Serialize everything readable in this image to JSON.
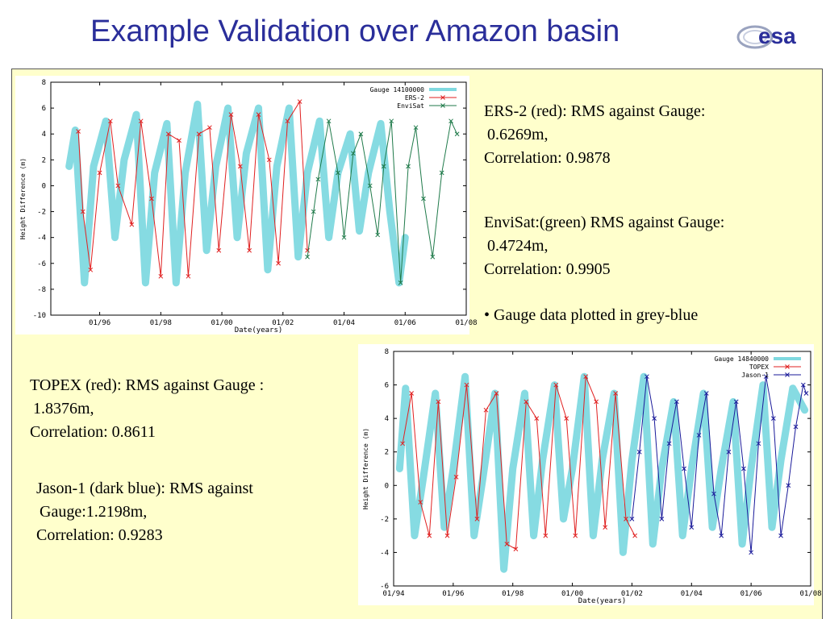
{
  "slide": {
    "title": "Example Validation over Amazon basin",
    "logo_text": "esa",
    "logo_color": "#2a2e9a"
  },
  "colors": {
    "panel_bg": "#ffffcc",
    "gauge": "#7fd9e0",
    "ers2": "#e02020",
    "envisat": "#1f7a4a",
    "topex": "#e02020",
    "jason1": "#1a1a9a"
  },
  "stats_top": {
    "ers2_line1": "ERS-2 (red): RMS against Gauge:",
    "ers2_line2": "0.6269m,",
    "ers2_line3": "Correlation: 0.9878",
    "envisat_line1": "EnviSat:(green) RMS against Gauge:",
    "envisat_line2": "0.4724m,",
    "envisat_line3": "Correlation: 0.9905",
    "gauge_note": "• Gauge data plotted in grey-blue"
  },
  "stats_bottom": {
    "topex_line1": "TOPEX (red): RMS against Gauge :",
    "topex_line2": "1.8376m,",
    "topex_line3": "Correlation: 0.8611",
    "jason_line1": "Jason-1 (dark blue): RMS against",
    "jason_line2": "Gauge:1.2198m,",
    "jason_line3": "Correlation: 0.9283"
  },
  "chart_data": [
    {
      "type": "line",
      "xlabel": "Date(years)",
      "ylabel": "Height Difference (m)",
      "xlim": [
        1994.4,
        2008.0
      ],
      "ylim": [
        -10,
        8
      ],
      "xticks": [
        1996,
        1998,
        2000,
        2002,
        2004,
        2006,
        2008
      ],
      "xtick_labels": [
        "01/96",
        "01/98",
        "01/00",
        "01/02",
        "01/04",
        "01/06",
        "01/08"
      ],
      "yticks": [
        -10,
        -8,
        -6,
        -4,
        -2,
        0,
        2,
        4,
        6,
        8
      ],
      "legend_position": "top-right",
      "series": [
        {
          "name": "Gauge 14100000",
          "color": "#7fd9e0",
          "style": "band",
          "x": [
            1995.0,
            1995.2,
            1995.5,
            1995.8,
            1996.2,
            1996.5,
            1996.8,
            1997.2,
            1997.5,
            1997.8,
            1998.2,
            1998.5,
            1998.8,
            1999.2,
            1999.5,
            1999.8,
            2000.2,
            2000.5,
            2000.8,
            2001.2,
            2001.5,
            2001.8,
            2002.2,
            2002.5,
            2002.8,
            2003.2,
            2003.5,
            2003.8,
            2004.2,
            2004.5,
            2004.8,
            2005.2,
            2005.5,
            2005.8,
            2006.0
          ],
          "y": [
            1.5,
            4.3,
            -7.5,
            1.5,
            5.0,
            -4.0,
            2.0,
            5.5,
            -7.5,
            1.0,
            4.8,
            -7.5,
            1.0,
            6.3,
            -5.0,
            1.5,
            6.0,
            -4.0,
            2.5,
            6.0,
            -6.5,
            1.5,
            6.0,
            -5.5,
            1.0,
            5.0,
            -4.0,
            1.0,
            4.0,
            -3.5,
            1.0,
            4.8,
            -2.0,
            -7.5,
            -4.0
          ]
        },
        {
          "name": "ERS-2",
          "color": "#e02020",
          "x": [
            1995.3,
            1995.45,
            1995.7,
            1996.0,
            1996.35,
            1996.6,
            1997.05,
            1997.35,
            1997.7,
            1998.0,
            1998.25,
            1998.6,
            1998.9,
            1999.25,
            1999.6,
            1999.9,
            2000.3,
            2000.6,
            2000.9,
            2001.2,
            2001.55,
            2001.85,
            2002.15,
            2002.55,
            2002.8
          ],
          "y": [
            4.2,
            -2.0,
            -6.5,
            1.0,
            5.0,
            0.0,
            -3.0,
            5.0,
            -1.0,
            -7.0,
            4.0,
            3.5,
            -7.0,
            4.0,
            4.5,
            -5.0,
            5.5,
            1.5,
            -5.0,
            5.5,
            2.0,
            -6.0,
            5.0,
            6.5,
            -5.0
          ]
        },
        {
          "name": "EnviSat",
          "color": "#1f7a4a",
          "x": [
            2002.8,
            2003.0,
            2003.15,
            2003.5,
            2003.8,
            2004.0,
            2004.3,
            2004.55,
            2004.85,
            2005.1,
            2005.3,
            2005.55,
            2005.85,
            2006.1,
            2006.35,
            2006.6,
            2006.9,
            2007.2,
            2007.5,
            2007.7
          ],
          "y": [
            -5.5,
            -2.0,
            0.5,
            5.0,
            1.0,
            -4.0,
            2.5,
            4.0,
            0.0,
            -3.8,
            1.5,
            5.0,
            -7.5,
            1.5,
            4.5,
            -1.0,
            -5.5,
            1.0,
            5.0,
            4.0
          ]
        }
      ]
    },
    {
      "type": "line",
      "xlabel": "Date(years)",
      "ylabel": "Height Difference (m)",
      "xlim": [
        1994.0,
        2008.0
      ],
      "ylim": [
        -6,
        8
      ],
      "xticks": [
        1994,
        1996,
        1998,
        2000,
        2002,
        2004,
        2006,
        2008
      ],
      "xtick_labels": [
        "01/94",
        "01/96",
        "01/98",
        "01/00",
        "01/02",
        "01/04",
        "01/06",
        "01/08"
      ],
      "yticks": [
        -6,
        -4,
        -2,
        0,
        2,
        4,
        6,
        8
      ],
      "legend_position": "top-right",
      "series": [
        {
          "name": "Gauge 14840000",
          "color": "#7fd9e0",
          "style": "band",
          "x": [
            1994.2,
            1994.4,
            1994.7,
            1995.0,
            1995.4,
            1995.7,
            1996.0,
            1996.4,
            1996.7,
            1997.0,
            1997.4,
            1997.7,
            1998.0,
            1998.4,
            1998.7,
            1999.0,
            1999.4,
            1999.7,
            2000.0,
            2000.4,
            2000.7,
            2001.0,
            2001.4,
            2001.7,
            2002.0,
            2002.4,
            2002.7,
            2003.0,
            2003.4,
            2003.7,
            2004.0,
            2004.4,
            2004.7,
            2005.0,
            2005.4,
            2005.7,
            2006.0,
            2006.4,
            2006.7,
            2007.0,
            2007.4,
            2007.8
          ],
          "y": [
            1.0,
            5.8,
            -3.0,
            0.5,
            5.5,
            -2.5,
            1.0,
            6.5,
            -3.0,
            0.5,
            5.5,
            -5.0,
            1.0,
            5.5,
            -3.0,
            1.5,
            6.0,
            -2.0,
            1.0,
            6.5,
            -3.0,
            1.5,
            5.5,
            -4.0,
            1.5,
            6.5,
            -3.5,
            1.0,
            5.0,
            -3.0,
            1.0,
            5.5,
            -2.5,
            1.0,
            5.0,
            -3.5,
            1.0,
            6.0,
            -2.5,
            1.5,
            5.8,
            4.5
          ]
        },
        {
          "name": "TOPEX",
          "color": "#e02020",
          "x": [
            1994.3,
            1994.6,
            1994.9,
            1995.2,
            1995.5,
            1995.8,
            1996.1,
            1996.45,
            1996.8,
            1997.1,
            1997.45,
            1997.8,
            1998.1,
            1998.45,
            1998.8,
            1999.1,
            1999.45,
            1999.8,
            2000.1,
            2000.45,
            2000.8,
            2001.1,
            2001.45,
            2001.8,
            2002.1
          ],
          "y": [
            2.5,
            5.5,
            -1.0,
            -3.0,
            5.0,
            -3.0,
            0.5,
            6.0,
            -2.0,
            4.5,
            5.5,
            -3.5,
            -3.8,
            5.0,
            4.0,
            -3.0,
            6.0,
            4.0,
            -3.0,
            6.5,
            5.0,
            -2.5,
            5.5,
            -2.0,
            -3.0
          ]
        },
        {
          "name": "Jason-1",
          "color": "#1a1a9a",
          "x": [
            2002.0,
            2002.25,
            2002.5,
            2002.75,
            2003.0,
            2003.25,
            2003.5,
            2003.75,
            2004.0,
            2004.25,
            2004.5,
            2004.75,
            2005.0,
            2005.25,
            2005.5,
            2005.75,
            2006.0,
            2006.25,
            2006.5,
            2006.75,
            2007.0,
            2007.25,
            2007.5,
            2007.75,
            2007.85
          ],
          "y": [
            -2.0,
            2.0,
            6.5,
            4.0,
            -2.0,
            2.5,
            5.0,
            1.0,
            -2.5,
            3.0,
            5.5,
            -0.5,
            -3.0,
            2.0,
            5.0,
            1.0,
            -4.0,
            2.5,
            6.5,
            4.0,
            -3.0,
            0.0,
            3.5,
            6.0,
            5.5
          ]
        }
      ]
    }
  ]
}
